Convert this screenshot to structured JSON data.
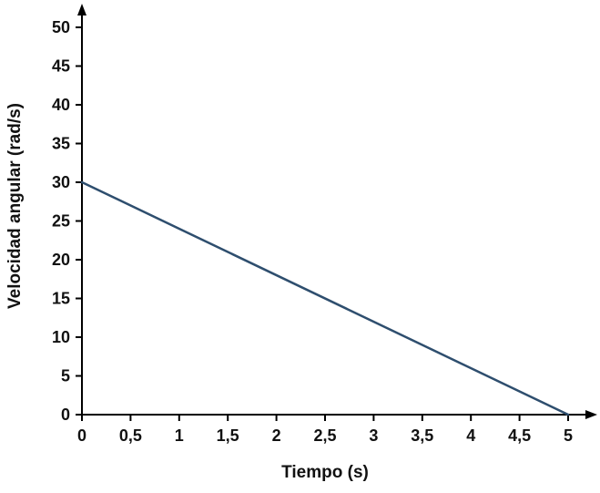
{
  "chart_data": {
    "type": "line",
    "title": "",
    "xlabel": "Tiempo (s)",
    "ylabel": "Velocidad angular (rad/s)",
    "x": [
      0,
      5
    ],
    "y": [
      30,
      0
    ],
    "xlim": [
      0,
      5
    ],
    "ylim": [
      0,
      50
    ],
    "x_ticks": [
      0,
      0.5,
      1,
      1.5,
      2,
      2.5,
      3,
      3.5,
      4,
      4.5,
      5
    ],
    "x_tick_labels": [
      "0",
      "0,5",
      "1",
      "1,5",
      "2",
      "2,5",
      "3",
      "3,5",
      "4",
      "4,5",
      "5"
    ],
    "y_ticks": [
      0,
      5,
      10,
      15,
      20,
      25,
      30,
      35,
      40,
      45,
      50
    ],
    "y_tick_labels": [
      "0",
      "5",
      "10",
      "15",
      "20",
      "25",
      "30",
      "35",
      "40",
      "45",
      "50"
    ],
    "grid": false,
    "legend": "none",
    "line_color": "#2e4e6e",
    "axis_color": "#000000"
  }
}
